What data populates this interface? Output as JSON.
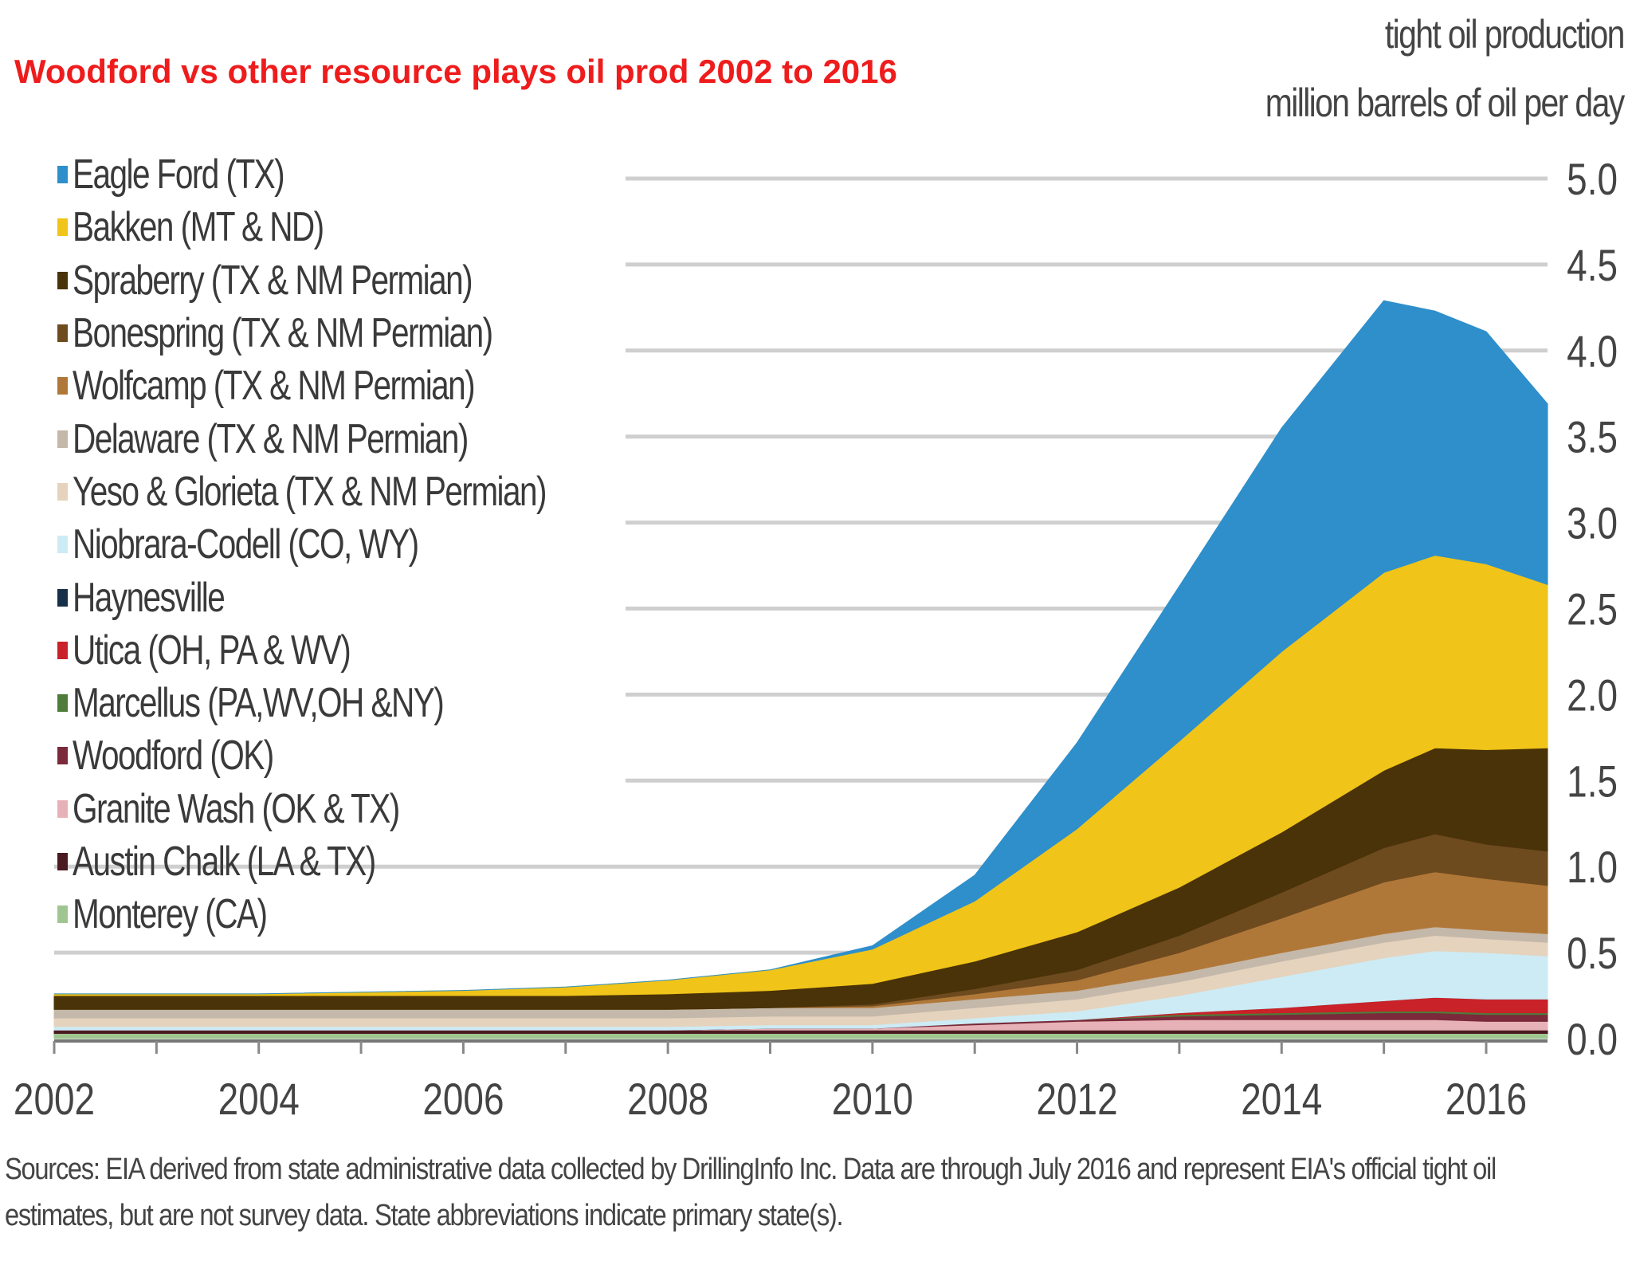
{
  "title": "Woodford vs other resource plays oil prod 2002 to 2016",
  "ylabel_line1": "tight oil production",
  "ylabel_line2": "million barrels of oil per day",
  "source_line1": "Sources: EIA derived from state administrative data collected by DrillingInfo Inc. Data are through July 2016 and represent EIA's official tight oil",
  "source_line2": "estimates, but are not survey data. State abbreviations indicate primary state(s).",
  "legend": [
    {
      "label": "Eagle Ford (TX)",
      "color": "#2e8fcb"
    },
    {
      "label": "Bakken (MT & ND)",
      "color": "#f0c419"
    },
    {
      "label": "Spraberry (TX & NM Permian)",
      "color": "#4a3308"
    },
    {
      "label": "Bonespring (TX & NM Permian)",
      "color": "#6e4a1f"
    },
    {
      "label": "Wolfcamp (TX & NM Permian)",
      "color": "#b07838"
    },
    {
      "label": "Delaware (TX & NM Permian)",
      "color": "#c4b8aa"
    },
    {
      "label": "Yeso & Glorieta (TX & NM Permian)",
      "color": "#e5d3bd"
    },
    {
      "label": "Niobrara-Codell (CO, WY)",
      "color": "#cdebf5"
    },
    {
      "label": "Haynesville",
      "color": "#153048"
    },
    {
      "label": "Utica (OH, PA & WV)",
      "color": "#c92228"
    },
    {
      "label": "Marcellus (PA,WV,OH &NY)",
      "color": "#4f7c3a"
    },
    {
      "label": "Woodford (OK)",
      "color": "#7a2a3a"
    },
    {
      "label": "Granite Wash (OK & TX)",
      "color": "#e7b2b7"
    },
    {
      "label": "Austin Chalk (LA & TX)",
      "color": "#4b1a20"
    },
    {
      "label": "Monterey (CA)",
      "color": "#9fc690"
    }
  ],
  "chart_data": {
    "type": "area",
    "stacked": true,
    "title": "Woodford vs other resource plays oil prod 2002 to 2016",
    "ylabel": "tight oil production million barrels of oil per day",
    "xlabel": "",
    "ylim": [
      0,
      5.0
    ],
    "xlim": [
      2002,
      2016.6
    ],
    "yticks": [
      "0.0",
      "0.5",
      "1.0",
      "1.5",
      "2.0",
      "2.5",
      "3.0",
      "3.5",
      "4.0",
      "4.5",
      "5.0"
    ],
    "xticks": [
      "2002",
      "2004",
      "2006",
      "2008",
      "2010",
      "2012",
      "2014",
      "2016"
    ],
    "grid": true,
    "legend_position": "top-left",
    "x": [
      2002,
      2003,
      2004,
      2005,
      2006,
      2007,
      2008,
      2009,
      2010,
      2011,
      2012,
      2013,
      2014,
      2015,
      2015.5,
      2016,
      2016.6
    ],
    "series": [
      {
        "name": "Monterey (CA)",
        "values": [
          0.03,
          0.03,
          0.03,
          0.03,
          0.03,
          0.03,
          0.03,
          0.03,
          0.03,
          0.03,
          0.03,
          0.03,
          0.03,
          0.03,
          0.03,
          0.03,
          0.03
        ]
      },
      {
        "name": "Austin Chalk (LA & TX)",
        "values": [
          0.02,
          0.02,
          0.02,
          0.02,
          0.02,
          0.02,
          0.02,
          0.02,
          0.02,
          0.02,
          0.02,
          0.02,
          0.02,
          0.02,
          0.02,
          0.02,
          0.02
        ]
      },
      {
        "name": "Granite Wash (OK & TX)",
        "values": [
          0.0,
          0.0,
          0.0,
          0.0,
          0.0,
          0.0,
          0.0,
          0.01,
          0.01,
          0.03,
          0.05,
          0.06,
          0.06,
          0.06,
          0.06,
          0.05,
          0.05
        ]
      },
      {
        "name": "Woodford (OK)",
        "values": [
          0.0,
          0.0,
          0.0,
          0.0,
          0.0,
          0.0,
          0.0,
          0.0,
          0.0,
          0.01,
          0.01,
          0.02,
          0.03,
          0.04,
          0.04,
          0.04,
          0.04
        ]
      },
      {
        "name": "Marcellus (PA,WV,OH &NY)",
        "values": [
          0.0,
          0.0,
          0.0,
          0.0,
          0.0,
          0.0,
          0.0,
          0.0,
          0.0,
          0.0,
          0.0,
          0.01,
          0.01,
          0.01,
          0.01,
          0.01,
          0.01
        ]
      },
      {
        "name": "Utica (OH, PA & WV)",
        "values": [
          0.0,
          0.0,
          0.0,
          0.0,
          0.0,
          0.0,
          0.0,
          0.0,
          0.0,
          0.0,
          0.0,
          0.01,
          0.03,
          0.06,
          0.08,
          0.08,
          0.08
        ]
      },
      {
        "name": "Haynesville",
        "values": [
          0.0,
          0.0,
          0.0,
          0.0,
          0.0,
          0.0,
          0.0,
          0.0,
          0.0,
          0.0,
          0.0,
          0.0,
          0.0,
          0.0,
          0.0,
          0.0,
          0.0
        ]
      },
      {
        "name": "Niobrara-Codell (CO, WY)",
        "values": [
          0.02,
          0.02,
          0.02,
          0.02,
          0.02,
          0.02,
          0.02,
          0.02,
          0.02,
          0.03,
          0.05,
          0.1,
          0.18,
          0.25,
          0.27,
          0.27,
          0.25
        ]
      },
      {
        "name": "Yeso & Glorieta (TX & NM Permian)",
        "values": [
          0.05,
          0.05,
          0.05,
          0.05,
          0.05,
          0.05,
          0.05,
          0.05,
          0.05,
          0.06,
          0.07,
          0.08,
          0.09,
          0.09,
          0.09,
          0.08,
          0.08
        ]
      },
      {
        "name": "Delaware (TX & NM Permian)",
        "values": [
          0.05,
          0.05,
          0.05,
          0.05,
          0.05,
          0.05,
          0.05,
          0.05,
          0.05,
          0.05,
          0.05,
          0.05,
          0.05,
          0.05,
          0.05,
          0.05,
          0.05
        ]
      },
      {
        "name": "Wolfcamp (TX & NM Permian)",
        "values": [
          0.0,
          0.0,
          0.0,
          0.0,
          0.0,
          0.0,
          0.0,
          0.0,
          0.01,
          0.03,
          0.06,
          0.12,
          0.2,
          0.3,
          0.32,
          0.3,
          0.28
        ]
      },
      {
        "name": "Bonespring (TX & NM Permian)",
        "values": [
          0.0,
          0.0,
          0.0,
          0.0,
          0.0,
          0.0,
          0.0,
          0.0,
          0.01,
          0.03,
          0.06,
          0.1,
          0.15,
          0.2,
          0.22,
          0.2,
          0.2
        ]
      },
      {
        "name": "Spraberry (TX & NM Permian)",
        "values": [
          0.08,
          0.08,
          0.08,
          0.08,
          0.08,
          0.08,
          0.09,
          0.1,
          0.12,
          0.16,
          0.22,
          0.28,
          0.35,
          0.45,
          0.5,
          0.55,
          0.6
        ]
      },
      {
        "name": "Bakken (MT & ND)",
        "values": [
          0.01,
          0.01,
          0.01,
          0.02,
          0.03,
          0.05,
          0.08,
          0.12,
          0.2,
          0.35,
          0.6,
          0.85,
          1.05,
          1.15,
          1.12,
          1.08,
          0.95
        ]
      },
      {
        "name": "Eagle Ford (TX)",
        "values": [
          0.0,
          0.0,
          0.0,
          0.0,
          0.0,
          0.0,
          0.0,
          0.0,
          0.02,
          0.15,
          0.5,
          0.9,
          1.3,
          1.58,
          1.42,
          1.35,
          1.05
        ]
      }
    ]
  }
}
